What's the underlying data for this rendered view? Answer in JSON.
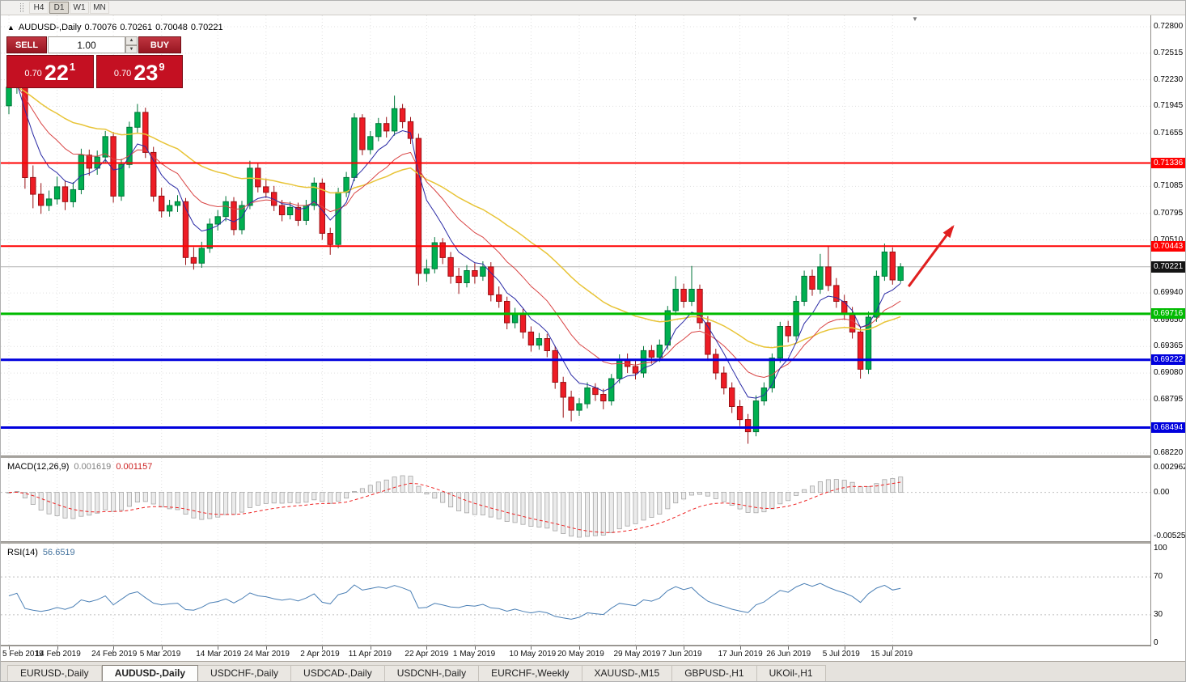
{
  "toolbar": {
    "timeframes": [
      {
        "label": "H4",
        "active": false
      },
      {
        "label": "D1",
        "active": true
      },
      {
        "label": "W1",
        "active": false
      },
      {
        "label": "MN",
        "active": false
      }
    ]
  },
  "chart_header": {
    "collapse_arrow": "▲",
    "symbol": "AUDUSD-,Daily",
    "open": "0.70076",
    "high": "0.70261",
    "low": "0.70048",
    "close": "0.70221"
  },
  "one_click": {
    "sell_label": "SELL",
    "buy_label": "BUY",
    "volume": "1.00",
    "spin_up": "▲",
    "spin_dn": "▼",
    "sell_price": {
      "small": "0.70",
      "big": "22",
      "sup": "1"
    },
    "buy_price": {
      "small": "0.70",
      "big": "23",
      "sup": "9"
    }
  },
  "price_axis": {
    "ticks": [
      "0.72800",
      "0.72515",
      "0.72230",
      "0.71945",
      "0.71655",
      "0.71085",
      "0.70795",
      "0.70510",
      "0.69940",
      "0.69650",
      "0.69365",
      "0.69080",
      "0.68795",
      "0.68220"
    ],
    "current_price": {
      "label": "0.70221",
      "bg": "#141414"
    }
  },
  "indicators": {
    "macd": {
      "title": "MACD(12,26,9)",
      "value_main": "0.001619",
      "value_signal": "0.001157",
      "axis": [
        "0.002962",
        "0.00",
        "-0.005255"
      ]
    },
    "rsi": {
      "title": "RSI(14)",
      "value": "56.6519",
      "axis": [
        "100",
        "70",
        "30",
        "0"
      ]
    }
  },
  "date_axis": {
    "labels": [
      {
        "i": 0,
        "t": "5 Feb 2019"
      },
      {
        "i": 6,
        "t": "14 Feb 2019"
      },
      {
        "i": 13,
        "t": "24 Feb 2019"
      },
      {
        "i": 19,
        "t": "5 Mar 2019"
      },
      {
        "i": 26,
        "t": "14 Mar 2019"
      },
      {
        "i": 32,
        "t": "24 Mar 2019"
      },
      {
        "i": 39,
        "t": "2 Apr 2019"
      },
      {
        "i": 45,
        "t": "11 Apr 2019"
      },
      {
        "i": 52,
        "t": "22 Apr 2019"
      },
      {
        "i": 58,
        "t": "1 May 2019"
      },
      {
        "i": 65,
        "t": "10 May 2019"
      },
      {
        "i": 71,
        "t": "20 May 2019"
      },
      {
        "i": 78,
        "t": "29 May 2019"
      },
      {
        "i": 84,
        "t": "7 Jun 2019"
      },
      {
        "i": 91,
        "t": "17 Jun 2019"
      },
      {
        "i": 97,
        "t": "26 Jun 2019"
      },
      {
        "i": 104,
        "t": "5 Jul 2019"
      },
      {
        "i": 110,
        "t": "15 Jul 2019"
      }
    ]
  },
  "tabs": [
    {
      "label": "EURUSD-,Daily",
      "active": false
    },
    {
      "label": "AUDUSD-,Daily",
      "active": true
    },
    {
      "label": "USDCHF-,Daily",
      "active": false
    },
    {
      "label": "USDCAD-,Daily",
      "active": false
    },
    {
      "label": "USDCNH-,Daily",
      "active": false
    },
    {
      "label": "EURCHF-,Weekly",
      "active": false
    },
    {
      "label": "XAUUSD-,M15",
      "active": false
    },
    {
      "label": "GBPUSD-,H1",
      "active": false
    },
    {
      "label": "UKOil-,H1",
      "active": false
    }
  ],
  "chart_shift_marker": "▼",
  "chart_data": {
    "type": "candlestick",
    "symbol": "AUDUSD",
    "timeframe": "Daily",
    "main_range": [
      0.68194,
      0.72922
    ],
    "price_ticks": [
      0.728,
      0.72515,
      0.7223,
      0.71945,
      0.71655,
      0.71085,
      0.70795,
      0.7051,
      0.6994,
      0.6965,
      0.69365,
      0.6908,
      0.68795,
      0.6822
    ],
    "current_price": 0.70221,
    "last_ohlc": {
      "open": 0.70076,
      "high": 0.70261,
      "low": 0.70048,
      "close": 0.70221
    },
    "up_color": "#00b050",
    "up_border": "#00763a",
    "down_color": "#ee1c25",
    "down_border": "#991014",
    "levels": [
      {
        "price": 0.71336,
        "label": "0.71336",
        "color": "#ff0000",
        "width": 2
      },
      {
        "price": 0.70443,
        "label": "0.70443",
        "color": "#ff0000",
        "width": 2
      },
      {
        "price": 0.69716,
        "label": "0.69716",
        "color": "#00bb00",
        "width": 3
      },
      {
        "price": 0.69222,
        "label": "0.69222",
        "color": "#0000dd",
        "width": 3
      },
      {
        "price": 0.68494,
        "label": "0.68494",
        "color": "#0000dd",
        "width": 3
      }
    ],
    "overlays": [
      {
        "name": "ma-slow",
        "period": 34,
        "color": "#e8c437",
        "width": 1.5
      },
      {
        "name": "ma-mid",
        "period": 14,
        "color": "#d94545",
        "width": 1
      },
      {
        "name": "ma-fast",
        "period": 6,
        "color": "#2b2ba6",
        "width": 1
      }
    ],
    "macd": {
      "fast": 12,
      "slow": 26,
      "signal_period": 9,
      "range": [
        -0.005836,
        0.004122
      ],
      "axis_values": [
        0.002962,
        0,
        -0.005255
      ],
      "hist_fill": "#ebebeb",
      "hist_border": "#a6a6a6",
      "signal_color": "#ee2222"
    },
    "rsi": {
      "period": 14,
      "range": [
        -1.7,
        105.1
      ],
      "axis_values": [
        100,
        70,
        30,
        0
      ],
      "color": "#4a7fb5",
      "levels": [
        70,
        30
      ]
    },
    "arrow": {
      "color": "#e01f1f",
      "i1": 112,
      "p1": 0.7001,
      "i2": 117.5,
      "p2": 0.7065,
      "width": 3
    },
    "candles": [
      [
        0.7195,
        0.7229,
        0.7186,
        0.7215
      ],
      [
        0.7215,
        0.7241,
        0.7208,
        0.723
      ],
      [
        0.723,
        0.7237,
        0.7106,
        0.7118
      ],
      [
        0.7118,
        0.7131,
        0.7085,
        0.71
      ],
      [
        0.71,
        0.7112,
        0.7079,
        0.7088
      ],
      [
        0.7088,
        0.7104,
        0.7082,
        0.7095
      ],
      [
        0.7095,
        0.7119,
        0.7089,
        0.7108
      ],
      [
        0.7108,
        0.7115,
        0.7083,
        0.7092
      ],
      [
        0.7092,
        0.7113,
        0.7086,
        0.7105
      ],
      [
        0.7105,
        0.7149,
        0.71,
        0.7142
      ],
      [
        0.7142,
        0.7148,
        0.712,
        0.7128
      ],
      [
        0.7128,
        0.7147,
        0.7121,
        0.714
      ],
      [
        0.714,
        0.7168,
        0.7134,
        0.7162
      ],
      [
        0.7162,
        0.7167,
        0.7091,
        0.7098
      ],
      [
        0.7098,
        0.7138,
        0.7093,
        0.7132
      ],
      [
        0.7132,
        0.7178,
        0.7128,
        0.7172
      ],
      [
        0.7172,
        0.7197,
        0.7165,
        0.7188
      ],
      [
        0.7188,
        0.7193,
        0.7139,
        0.7145
      ],
      [
        0.7145,
        0.7151,
        0.7092,
        0.7098
      ],
      [
        0.7098,
        0.7107,
        0.7075,
        0.7082
      ],
      [
        0.7082,
        0.7094,
        0.7076,
        0.7088
      ],
      [
        0.7088,
        0.7099,
        0.7081,
        0.7092
      ],
      [
        0.7092,
        0.7096,
        0.7024,
        0.7032
      ],
      [
        0.7032,
        0.7043,
        0.7019,
        0.7026
      ],
      [
        0.7026,
        0.7049,
        0.7021,
        0.7042
      ],
      [
        0.7042,
        0.7074,
        0.7037,
        0.7068
      ],
      [
        0.7068,
        0.7083,
        0.7061,
        0.7076
      ],
      [
        0.7076,
        0.7098,
        0.7071,
        0.7092
      ],
      [
        0.7092,
        0.7097,
        0.7056,
        0.7062
      ],
      [
        0.7062,
        0.7093,
        0.7057,
        0.7088
      ],
      [
        0.7088,
        0.7136,
        0.7084,
        0.7128
      ],
      [
        0.7128,
        0.7133,
        0.7102,
        0.7108
      ],
      [
        0.7108,
        0.7117,
        0.7096,
        0.7102
      ],
      [
        0.7102,
        0.7109,
        0.7082,
        0.7088
      ],
      [
        0.7088,
        0.7094,
        0.7071,
        0.7078
      ],
      [
        0.7078,
        0.7092,
        0.7073,
        0.7086
      ],
      [
        0.7086,
        0.7091,
        0.7066,
        0.7072
      ],
      [
        0.7072,
        0.7094,
        0.7067,
        0.7088
      ],
      [
        0.7088,
        0.7118,
        0.7083,
        0.7112
      ],
      [
        0.7112,
        0.7117,
        0.7051,
        0.7058
      ],
      [
        0.7058,
        0.7064,
        0.7035,
        0.7046
      ],
      [
        0.7046,
        0.7107,
        0.7042,
        0.7102
      ],
      [
        0.7102,
        0.7124,
        0.7097,
        0.7118
      ],
      [
        0.7118,
        0.7187,
        0.7114,
        0.7182
      ],
      [
        0.7182,
        0.7186,
        0.7142,
        0.7148
      ],
      [
        0.7148,
        0.7168,
        0.7143,
        0.7162
      ],
      [
        0.7162,
        0.7182,
        0.7157,
        0.7176
      ],
      [
        0.7176,
        0.7183,
        0.7161,
        0.7168
      ],
      [
        0.7168,
        0.7206,
        0.7163,
        0.7192
      ],
      [
        0.7192,
        0.7197,
        0.7171,
        0.7178
      ],
      [
        0.7178,
        0.7183,
        0.7154,
        0.716
      ],
      [
        0.716,
        0.7165,
        0.7002,
        0.7015
      ],
      [
        0.7015,
        0.703,
        0.7006,
        0.702
      ],
      [
        0.702,
        0.7054,
        0.7015,
        0.7048
      ],
      [
        0.7048,
        0.7053,
        0.7025,
        0.7032
      ],
      [
        0.7032,
        0.7038,
        0.7004,
        0.7012
      ],
      [
        0.7012,
        0.7021,
        0.6993,
        0.7005
      ],
      [
        0.7005,
        0.7024,
        0.7,
        0.7018
      ],
      [
        0.7018,
        0.7026,
        0.7004,
        0.7012
      ],
      [
        0.7012,
        0.7028,
        0.7007,
        0.7022
      ],
      [
        0.7022,
        0.7027,
        0.6985,
        0.6992
      ],
      [
        0.6992,
        0.7001,
        0.6978,
        0.6985
      ],
      [
        0.6985,
        0.699,
        0.6955,
        0.6962
      ],
      [
        0.6962,
        0.6978,
        0.6956,
        0.6972
      ],
      [
        0.6972,
        0.6977,
        0.6945,
        0.6952
      ],
      [
        0.6952,
        0.6958,
        0.6931,
        0.6938
      ],
      [
        0.6938,
        0.6951,
        0.6933,
        0.6945
      ],
      [
        0.6945,
        0.695,
        0.6925,
        0.6932
      ],
      [
        0.6932,
        0.6937,
        0.6891,
        0.6898
      ],
      [
        0.6898,
        0.6904,
        0.686,
        0.6882
      ],
      [
        0.6882,
        0.6889,
        0.6856,
        0.6868
      ],
      [
        0.6868,
        0.6881,
        0.6862,
        0.6875
      ],
      [
        0.6875,
        0.6898,
        0.687,
        0.6892
      ],
      [
        0.6892,
        0.6897,
        0.6878,
        0.6885
      ],
      [
        0.6885,
        0.6891,
        0.6869,
        0.6878
      ],
      [
        0.6878,
        0.6907,
        0.6873,
        0.6902
      ],
      [
        0.6902,
        0.6928,
        0.6897,
        0.6922
      ],
      [
        0.6922,
        0.6929,
        0.6908,
        0.6915
      ],
      [
        0.6915,
        0.6921,
        0.6901,
        0.6908
      ],
      [
        0.6908,
        0.6937,
        0.6903,
        0.6932
      ],
      [
        0.6932,
        0.6938,
        0.6918,
        0.6925
      ],
      [
        0.6925,
        0.6944,
        0.692,
        0.6938
      ],
      [
        0.6938,
        0.698,
        0.6933,
        0.6975
      ],
      [
        0.6975,
        0.7012,
        0.697,
        0.6998
      ],
      [
        0.6998,
        0.7004,
        0.6978,
        0.6985
      ],
      [
        0.6985,
        0.7023,
        0.698,
        0.6998
      ],
      [
        0.6998,
        0.7003,
        0.6955,
        0.6962
      ],
      [
        0.6962,
        0.6969,
        0.6921,
        0.6928
      ],
      [
        0.6928,
        0.6934,
        0.6901,
        0.6908
      ],
      [
        0.6908,
        0.6915,
        0.6885,
        0.6892
      ],
      [
        0.6892,
        0.6898,
        0.6865,
        0.6872
      ],
      [
        0.6872,
        0.6879,
        0.6851,
        0.6858
      ],
      [
        0.6858,
        0.6864,
        0.6832,
        0.6845
      ],
      [
        0.6845,
        0.6884,
        0.684,
        0.6878
      ],
      [
        0.6878,
        0.6898,
        0.6873,
        0.6892
      ],
      [
        0.6892,
        0.6929,
        0.6887,
        0.6924
      ],
      [
        0.6924,
        0.6963,
        0.6919,
        0.6958
      ],
      [
        0.6958,
        0.6964,
        0.6941,
        0.6948
      ],
      [
        0.6948,
        0.6991,
        0.6943,
        0.6985
      ],
      [
        0.6985,
        0.7018,
        0.698,
        0.7012
      ],
      [
        0.7012,
        0.7019,
        0.6991,
        0.6998
      ],
      [
        0.6998,
        0.7036,
        0.6993,
        0.7022
      ],
      [
        0.7022,
        0.7044,
        0.6996,
        0.7002
      ],
      [
        0.7002,
        0.701,
        0.6978,
        0.6985
      ],
      [
        0.6985,
        0.6992,
        0.6965,
        0.6972
      ],
      [
        0.6972,
        0.6979,
        0.6945,
        0.6952
      ],
      [
        0.6952,
        0.6958,
        0.6902,
        0.6912
      ],
      [
        0.6912,
        0.6974,
        0.6907,
        0.6968
      ],
      [
        0.6968,
        0.7018,
        0.6963,
        0.7012
      ],
      [
        0.7012,
        0.7047,
        0.7007,
        0.7038
      ],
      [
        0.7038,
        0.7043,
        0.7003,
        0.7008
      ],
      [
        0.70076,
        0.70261,
        0.70048,
        0.70221
      ]
    ]
  }
}
